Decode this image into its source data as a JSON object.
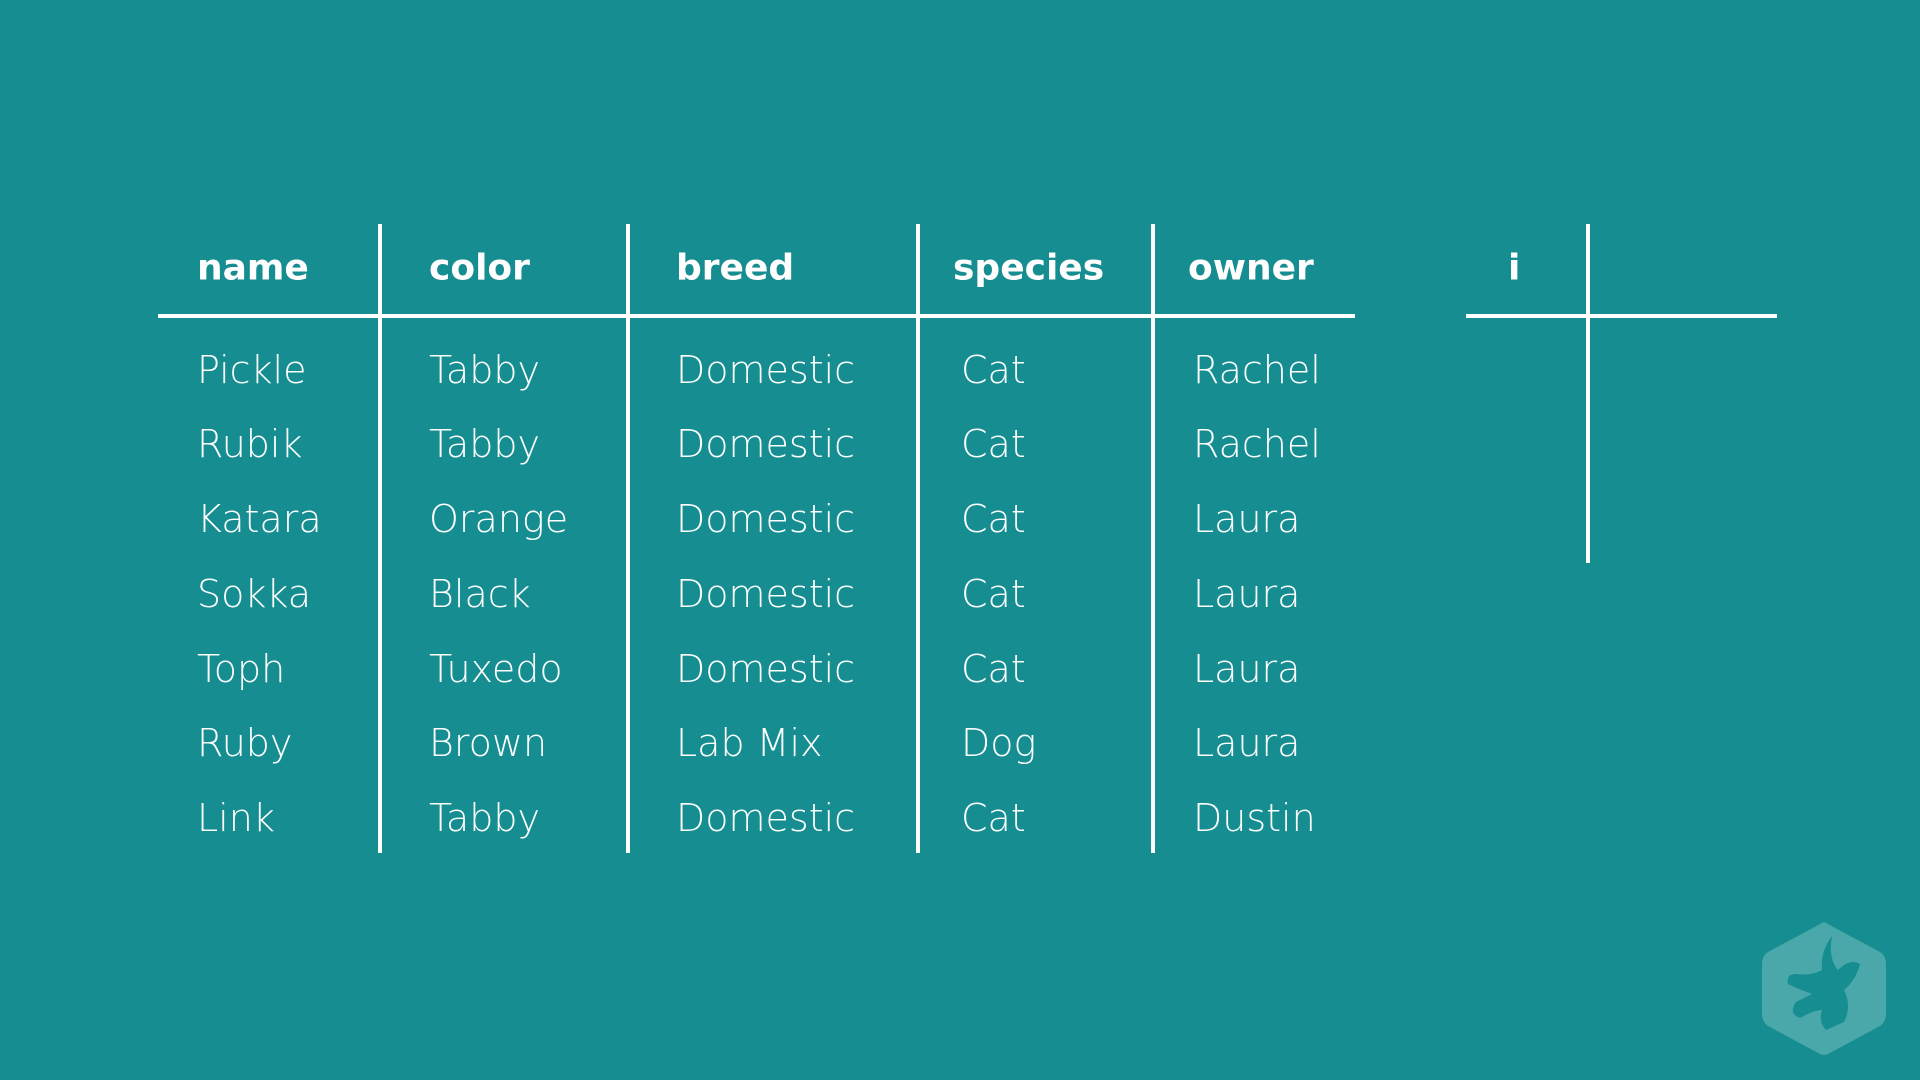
{
  "table": {
    "headers": [
      "name",
      "color",
      "breed",
      "species",
      "owner"
    ],
    "rows": [
      [
        "Pickle",
        "Tabby",
        "Domestic",
        "Cat",
        "Rachel"
      ],
      [
        "Rubik",
        "Tabby",
        "Domestic",
        "Cat",
        "Rachel"
      ],
      [
        "Katara",
        "Orange",
        "Domestic",
        "Cat",
        "Laura"
      ],
      [
        "Sokka",
        "Black",
        "Domestic",
        "Cat",
        "Laura"
      ],
      [
        "Toph",
        "Tuxedo",
        "Domestic",
        "Cat",
        "Laura"
      ],
      [
        "Ruby",
        "Brown",
        "Lab Mix",
        "Dog",
        "Laura"
      ],
      [
        "Link",
        "Tabby",
        "Domestic",
        "Cat",
        "Dustin"
      ]
    ]
  },
  "index_table": {
    "header": "i"
  },
  "colors": {
    "background": "#168e91",
    "lines": "#ffffff",
    "logo": "#4aa8ab"
  },
  "logo": {
    "icon": "treehouse-frog-hand-logo"
  }
}
